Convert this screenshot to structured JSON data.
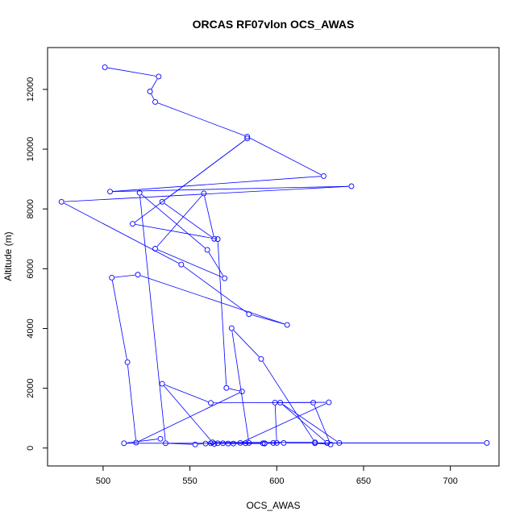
{
  "chart_data": {
    "type": "line",
    "title": "ORCAS RF07vlon OCS_AWAS",
    "xlabel": "OCS_AWAS",
    "ylabel": "Altitude (m)",
    "xlim": [
      468,
      728
    ],
    "ylim": [
      -600,
      13400
    ],
    "xticks": [
      500,
      550,
      600,
      650,
      700
    ],
    "yticks": [
      0,
      2000,
      4000,
      6000,
      8000,
      10000,
      12000
    ],
    "grid": false,
    "markers": "open-circle",
    "series": [
      {
        "color": "#0000ff",
        "x": [
          501,
          532,
          527,
          530,
          583,
          627,
          504,
          643,
          476,
          545,
          584,
          606,
          520,
          505,
          514,
          519,
          580,
          571,
          566,
          517,
          583,
          534,
          564,
          558,
          530,
          570,
          560,
          521,
          536,
          553,
          559,
          564,
          562,
          569,
          575,
          582,
          593,
          598,
          600,
          599,
          621,
          631,
          622,
          629,
          636,
          602,
          629,
          721,
          604,
          593,
          572,
          566,
          584,
          574,
          591,
          622,
          563,
          534,
          562,
          630,
          579,
          592,
          512,
          533
        ],
        "y": [
          12740,
          12430,
          11930,
          11580,
          10420,
          9100,
          8580,
          8760,
          8240,
          6140,
          4480,
          4120,
          5800,
          5700,
          2870,
          180,
          1890,
          2010,
          6990,
          7500,
          10360,
          8240,
          7000,
          8520,
          6670,
          5680,
          6630,
          8540,
          160,
          120,
          150,
          140,
          160,
          160,
          150,
          160,
          160,
          170,
          170,
          1520,
          1520,
          120,
          160,
          170,
          170,
          1520,
          170,
          170,
          170,
          150,
          150,
          160,
          170,
          4010,
          2980,
          190,
          190,
          2150,
          1510,
          1530,
          170,
          160,
          160,
          310
        ]
      }
    ]
  }
}
